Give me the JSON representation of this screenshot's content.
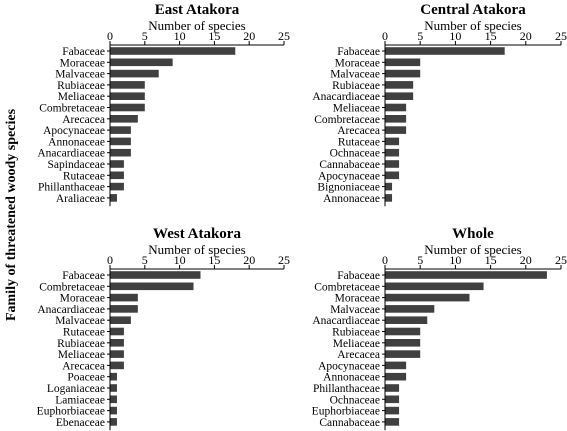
{
  "figure": {
    "ylabel": "Family of threatened woody species"
  },
  "chart_data": [
    {
      "type": "bar",
      "orientation": "horizontal",
      "title": "East Atakora",
      "xlabel": "Number of species",
      "xlim": [
        0,
        25
      ],
      "xticks": [
        0,
        5,
        10,
        15,
        20,
        25
      ],
      "xaxis_position": "top",
      "bar_color": "#404040",
      "categories": [
        "Fabaceae",
        "Moraceae",
        "Malvaceae",
        "Rubiaceae",
        "Meliaceae",
        "Combretaceae",
        "Arecacea",
        "Apocynaceae",
        "Annonaceae",
        "Anacardiaceae",
        "Sapindaceae",
        "Rutaceae",
        "Phillanthaceae",
        "Araliaceae"
      ],
      "values": [
        18,
        9,
        7,
        5,
        5,
        5,
        4,
        3,
        3,
        3,
        2,
        2,
        2,
        1
      ]
    },
    {
      "type": "bar",
      "orientation": "horizontal",
      "title": "Central Atakora",
      "xlabel": "Number of species",
      "xlim": [
        0,
        25
      ],
      "xticks": [
        0,
        5,
        10,
        15,
        20,
        25
      ],
      "xaxis_position": "top",
      "bar_color": "#404040",
      "categories": [
        "Fabaceae",
        "Moraceae",
        "Malvaceae",
        "Rubiaceae",
        "Anacardiaceae",
        "Meliaceae",
        "Combretaceae",
        "Arecacea",
        "Rutaceae",
        "Ochnaceae",
        "Cannabaceae",
        "Apocynaceae",
        "Bignoniaceae",
        "Annonaceae"
      ],
      "values": [
        17,
        5,
        5,
        4,
        4,
        3,
        3,
        3,
        2,
        2,
        2,
        2,
        1,
        1
      ]
    },
    {
      "type": "bar",
      "orientation": "horizontal",
      "title": "West Atakora",
      "xlabel": "Number of species",
      "xlim": [
        0,
        25
      ],
      "xticks": [
        0,
        5,
        10,
        15,
        20,
        25
      ],
      "xaxis_position": "top",
      "bar_color": "#404040",
      "categories": [
        "Fabaceae",
        "Combretaceae",
        "Moraceae",
        "Anacardiaceae",
        "Malvaceae",
        "Rutaceae",
        "Rubiaceae",
        "Meliaceae",
        "Arecacea",
        "Poaceae",
        "Loganiaceae",
        "Lamiaceae",
        "Euphorbiaceae",
        "Ebenaceae"
      ],
      "values": [
        13,
        12,
        4,
        4,
        3,
        2,
        2,
        2,
        2,
        1,
        1,
        1,
        1,
        1
      ]
    },
    {
      "type": "bar",
      "orientation": "horizontal",
      "title": "Whole",
      "xlabel": "Number of species",
      "xlim": [
        0,
        25
      ],
      "xticks": [
        0,
        5,
        10,
        15,
        20,
        25
      ],
      "xaxis_position": "top",
      "bar_color": "#404040",
      "categories": [
        "Fabaceae",
        "Combretaceae",
        "Moraceae",
        "Malvaceae",
        "Anacardiaceae",
        "Rubiaceae",
        "Meliaceae",
        "Arecacea",
        "Apocynaceae",
        "Annonaceae",
        "Phillanthaceae",
        "Ochnaceae",
        "Euphorbiaceae",
        "Cannabaceae"
      ],
      "values": [
        23,
        14,
        12,
        7,
        6,
        5,
        5,
        5,
        3,
        3,
        2,
        2,
        2,
        2
      ]
    }
  ]
}
